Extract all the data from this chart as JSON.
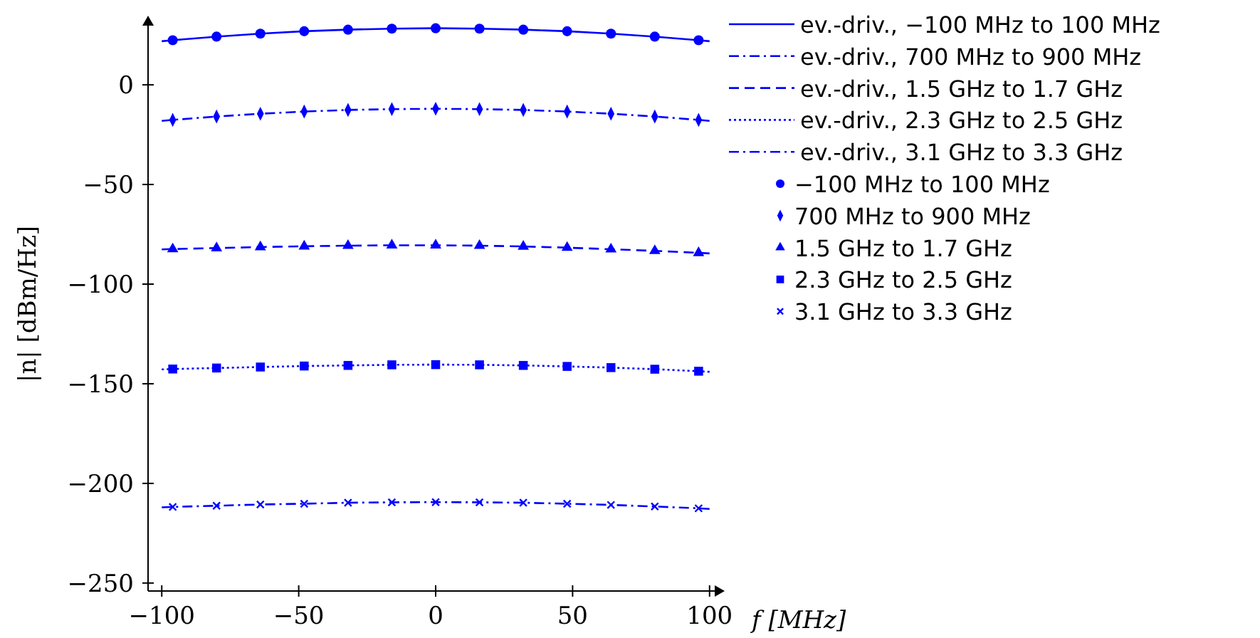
{
  "chart_data": {
    "type": "line",
    "xlabel": "f [MHz]",
    "ylabel": "|n| [dBm/Hz]",
    "xlim": [
      -105,
      105
    ],
    "ylim": [
      -254,
      34
    ],
    "xticks": [
      -100,
      -50,
      0,
      50,
      100
    ],
    "yticks": [
      -250,
      -200,
      -150,
      -100,
      -50,
      0
    ],
    "grid": false,
    "legend": "right",
    "x": [
      -100,
      -96,
      -80,
      -64,
      -48,
      -32,
      -16,
      0,
      16,
      32,
      48,
      64,
      80,
      96,
      100
    ],
    "series": [
      {
        "name": "ev.-driv., −100 MHz to 100 MHz",
        "type": "line",
        "line_style": "solid",
        "color": "#0000ff",
        "values": [
          21.9,
          22.4,
          24.2,
          25.7,
          26.9,
          27.7,
          28.2,
          28.4,
          28.2,
          27.7,
          26.9,
          25.7,
          24.2,
          22.4,
          21.9
        ]
      },
      {
        "name": "ev.-driv., 700 MHz to 900 MHz",
        "type": "line",
        "line_style": "dashdot",
        "color": "#0000ff",
        "values": [
          -18.1,
          -17.6,
          -15.9,
          -14.5,
          -13.4,
          -12.6,
          -12.2,
          -12.0,
          -12.2,
          -12.6,
          -13.4,
          -14.5,
          -15.9,
          -17.6,
          -18.1
        ]
      },
      {
        "name": "ev.-driv., 1.5 GHz to 1.7 GHz",
        "type": "line",
        "line_style": "dashed",
        "color": "#0000ff",
        "values": [
          -82.6,
          -82.4,
          -81.9,
          -81.4,
          -81.0,
          -80.7,
          -80.5,
          -80.5,
          -80.7,
          -81.1,
          -81.7,
          -82.5,
          -83.3,
          -84.3,
          -84.6
        ]
      },
      {
        "name": "ev.-driv., 2.3 GHz to 2.5 GHz",
        "type": "line",
        "line_style": "dotted",
        "color": "#0000ff",
        "values": [
          -142.8,
          -142.6,
          -142.1,
          -141.6,
          -141.1,
          -140.8,
          -140.5,
          -140.4,
          -140.5,
          -140.8,
          -141.3,
          -141.9,
          -142.7,
          -143.7,
          -144.0
        ]
      },
      {
        "name": "ev.-driv., 3.1 GHz to 3.3 GHz",
        "type": "line",
        "line_style": "dashdot",
        "color": "#0000ff",
        "values": [
          -212.0,
          -211.8,
          -211.2,
          -210.6,
          -210.2,
          -209.7,
          -209.5,
          -209.4,
          -209.5,
          -209.7,
          -210.2,
          -210.8,
          -211.6,
          -212.5,
          -212.8
        ]
      },
      {
        "name": "−100 MHz to 100 MHz",
        "type": "scatter",
        "marker": "circle",
        "color": "#0000ff",
        "x": [
          -96,
          -80,
          -64,
          -48,
          -32,
          -16,
          0,
          16,
          32,
          48,
          64,
          80,
          96
        ],
        "values": [
          22.4,
          24.2,
          25.7,
          26.9,
          27.7,
          28.2,
          28.4,
          28.2,
          27.7,
          26.9,
          25.7,
          24.2,
          22.4
        ]
      },
      {
        "name": "700 MHz to 900 MHz",
        "type": "scatter",
        "marker": "diamond",
        "color": "#0000ff",
        "x": [
          -96,
          -80,
          -64,
          -48,
          -32,
          -16,
          0,
          16,
          32,
          48,
          64,
          80,
          96
        ],
        "values": [
          -17.6,
          -15.9,
          -14.5,
          -13.4,
          -12.6,
          -12.2,
          -12.0,
          -12.2,
          -12.6,
          -13.4,
          -14.5,
          -15.9,
          -17.6
        ]
      },
      {
        "name": "1.5 GHz to 1.7 GHz",
        "type": "scatter",
        "marker": "triangle",
        "color": "#0000ff",
        "x": [
          -96,
          -80,
          -64,
          -48,
          -32,
          -16,
          0,
          16,
          32,
          48,
          64,
          80,
          96
        ],
        "values": [
          -82.4,
          -81.9,
          -81.4,
          -81.0,
          -80.7,
          -80.5,
          -80.5,
          -80.7,
          -81.1,
          -81.7,
          -82.5,
          -83.3,
          -84.3
        ]
      },
      {
        "name": "2.3 GHz to 2.5 GHz",
        "type": "scatter",
        "marker": "square",
        "color": "#0000ff",
        "x": [
          -96,
          -80,
          -64,
          -48,
          -32,
          -16,
          0,
          16,
          32,
          48,
          64,
          80,
          96
        ],
        "values": [
          -142.6,
          -142.1,
          -141.6,
          -141.1,
          -140.8,
          -140.5,
          -140.4,
          -140.5,
          -140.8,
          -141.3,
          -141.9,
          -142.7,
          -143.7
        ]
      },
      {
        "name": "3.1 GHz to 3.3 GHz",
        "type": "scatter",
        "marker": "cross",
        "color": "#0000ff",
        "x": [
          -96,
          -80,
          -64,
          -48,
          -32,
          -16,
          0,
          16,
          32,
          48,
          64,
          80,
          96
        ],
        "values": [
          -211.8,
          -211.2,
          -210.6,
          -210.2,
          -209.7,
          -209.5,
          -209.4,
          -209.5,
          -209.7,
          -210.2,
          -210.8,
          -211.6,
          -212.5
        ]
      }
    ]
  }
}
